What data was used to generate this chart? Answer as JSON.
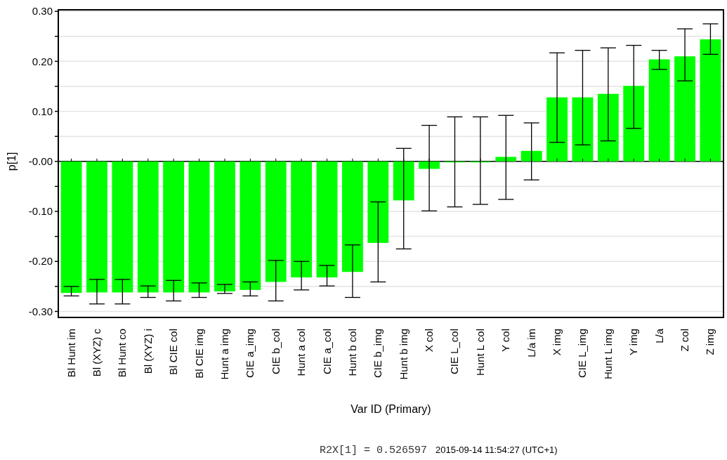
{
  "chart_data": {
    "type": "bar",
    "xlabel": "Var ID (Primary)",
    "ylabel": "p[1]",
    "categories": [
      "Bl Hunt im",
      "Bl (XYZ) c",
      "Bl Hunt co",
      "Bl (XYZ) i",
      "Bl CIE col",
      "Bl CIE img",
      "Hunt a img",
      "CIE a_img",
      "CIE b_col",
      "Hunt a col",
      "CIE a_col",
      "Hunt b col",
      "CIE b_img",
      "Hunt b img",
      "X col",
      "CIE L_col",
      "Hunt L col",
      "Y col",
      "L/a im",
      "X img",
      "CIE L_img",
      "Hunt L img",
      "Y img",
      "L/a",
      "Z col",
      "Z img"
    ],
    "values": [
      -0.263,
      -0.262,
      -0.262,
      -0.262,
      -0.262,
      -0.262,
      -0.26,
      -0.257,
      -0.241,
      -0.232,
      -0.232,
      -0.221,
      -0.163,
      -0.078,
      -0.015,
      -0.002,
      -0.002,
      0.009,
      0.021,
      0.128,
      0.128,
      0.135,
      0.151,
      0.204,
      0.21,
      0.244
    ],
    "errors": [
      [
        -0.269,
        -0.25
      ],
      [
        -0.285,
        -0.236
      ],
      [
        -0.285,
        -0.236
      ],
      [
        -0.272,
        -0.249
      ],
      [
        -0.279,
        -0.238
      ],
      [
        -0.272,
        -0.243
      ],
      [
        -0.264,
        -0.246
      ],
      [
        -0.269,
        -0.241
      ],
      [
        -0.279,
        -0.198
      ],
      [
        -0.257,
        -0.2
      ],
      [
        -0.249,
        -0.208
      ],
      [
        -0.272,
        -0.167
      ],
      [
        -0.241,
        -0.081
      ],
      [
        -0.175,
        0.026
      ],
      [
        -0.099,
        0.072
      ],
      [
        -0.091,
        0.089
      ],
      [
        -0.086,
        0.089
      ],
      [
        -0.076,
        0.092
      ],
      [
        -0.037,
        0.077
      ],
      [
        0.038,
        0.217
      ],
      [
        0.033,
        0.222
      ],
      [
        0.041,
        0.227
      ],
      [
        0.066,
        0.232
      ],
      [
        0.184,
        0.222
      ],
      [
        0.161,
        0.265
      ],
      [
        0.214,
        0.275
      ]
    ],
    "color": "#00ff00",
    "ylim": [
      -0.312,
      0.303
    ],
    "yticks": [
      {
        "value": -0.3,
        "label": "-0.30"
      },
      {
        "value": -0.25,
        "label": null
      },
      {
        "value": -0.2,
        "label": "-0.20"
      },
      {
        "value": -0.15,
        "label": null
      },
      {
        "value": -0.1,
        "label": "-0.10"
      },
      {
        "value": -0.05,
        "label": null
      },
      {
        "value": 0,
        "label": "-0.00"
      },
      {
        "value": 0.05,
        "label": null
      },
      {
        "value": 0.1,
        "label": "0.10"
      },
      {
        "value": 0.15,
        "label": null
      },
      {
        "value": 0.2,
        "label": "0.20"
      },
      {
        "value": 0.25,
        "label": null
      },
      {
        "value": 0.3,
        "label": "0.30"
      }
    ],
    "grid": true,
    "annotations": [
      "R2X[1] = 0.526597",
      "2015-09-14 11:54:27 (UTC+1)"
    ]
  }
}
